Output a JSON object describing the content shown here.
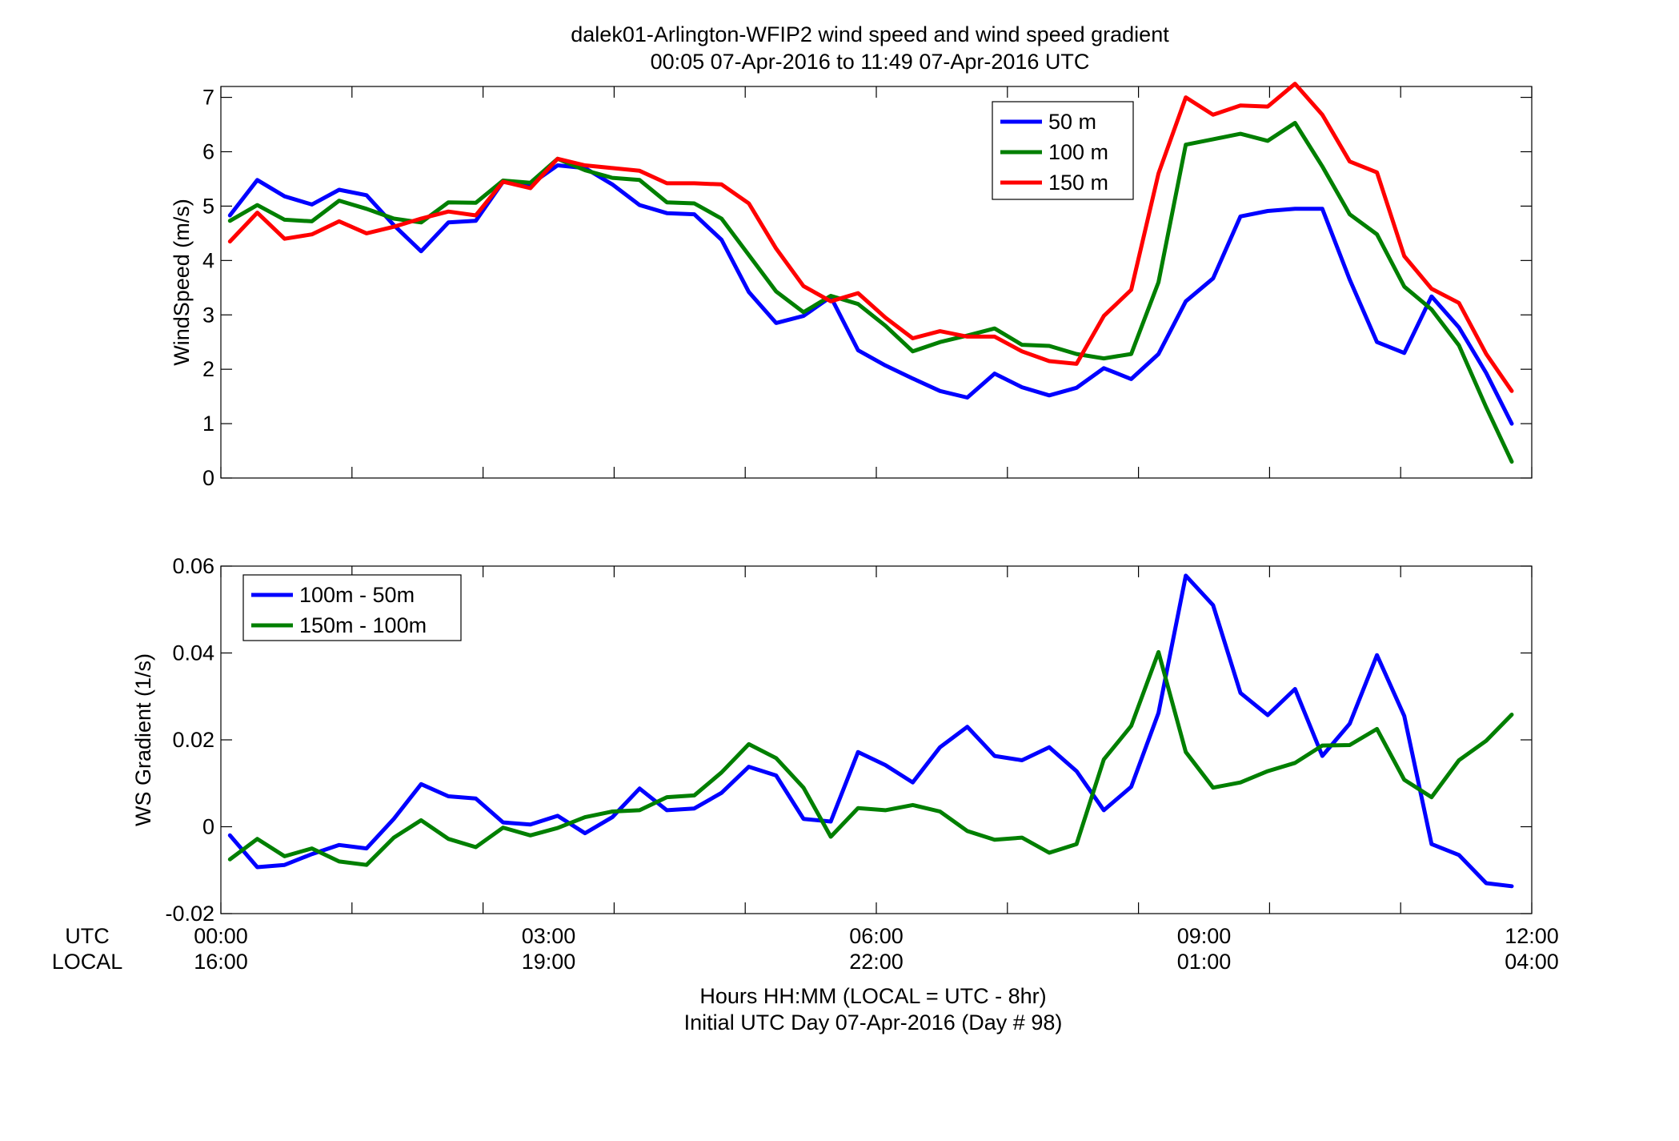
{
  "figure": {
    "title_line1": "dalek01-Arlington-WFIP2  wind speed and wind speed gradient",
    "title_line2": "00:05 07-Apr-2016 to 11:49 07-Apr-2016  UTC",
    "xlabel_line1": "Hours HH:MM  (LOCAL = UTC - 8hr)",
    "xlabel_line2": "Initial UTC Day 07-Apr-2016 (Day # 98)",
    "row_label_utc": "UTC",
    "row_label_local": "LOCAL",
    "utc_ticks": [
      "00:00",
      "03:00",
      "06:00",
      "09:00",
      "12:00"
    ],
    "local_ticks": [
      "16:00",
      "19:00",
      "22:00",
      "01:00",
      "04:00"
    ]
  },
  "chart_data": [
    {
      "type": "line",
      "ylabel": "WindSpeed (m/s)",
      "xlim": [
        0,
        12
      ],
      "ylim": [
        0,
        7.2
      ],
      "yticks": [
        0,
        1,
        2,
        3,
        4,
        5,
        6,
        7
      ],
      "ytick_labels": [
        "0",
        "1",
        "2",
        "3",
        "4",
        "5",
        "6",
        "7"
      ],
      "xticks": [
        0,
        1.2,
        2.4,
        3.6,
        4.8,
        6,
        7.2,
        8.4,
        9.6,
        10.8,
        12
      ],
      "grid": false,
      "legend": "top-right",
      "x": [
        0.083,
        0.333,
        0.583,
        0.833,
        1.083,
        1.333,
        1.583,
        1.833,
        2.083,
        2.333,
        2.583,
        2.833,
        3.083,
        3.333,
        3.583,
        3.833,
        4.083,
        4.333,
        4.583,
        4.833,
        5.083,
        5.333,
        5.583,
        5.833,
        6.083,
        6.333,
        6.583,
        6.833,
        7.083,
        7.333,
        7.583,
        7.833,
        8.083,
        8.333,
        8.583,
        8.833,
        9.083,
        9.333,
        9.583,
        9.833,
        10.083,
        10.333,
        10.583,
        10.833,
        11.083,
        11.333,
        11.583,
        11.817
      ],
      "series": [
        {
          "name": "50 m",
          "color": "#0000ff",
          "values": [
            4.83,
            5.48,
            5.18,
            5.03,
            5.3,
            5.2,
            4.65,
            4.17,
            4.7,
            4.73,
            5.45,
            5.4,
            5.75,
            5.7,
            5.4,
            5.02,
            4.87,
            4.85,
            4.38,
            3.42,
            2.85,
            2.98,
            3.33,
            2.35,
            2.07,
            1.83,
            1.6,
            1.48,
            1.92,
            1.67,
            1.52,
            1.66,
            2.02,
            1.82,
            2.28,
            3.25,
            3.67,
            4.81,
            4.91,
            4.95,
            4.95,
            3.65,
            2.5,
            2.3,
            3.34,
            2.77,
            1.93,
            1.0
          ]
        },
        {
          "name": "100 m",
          "color": "#007f00",
          "values": [
            4.73,
            5.02,
            4.75,
            4.72,
            5.1,
            4.95,
            4.77,
            4.7,
            5.07,
            5.06,
            5.47,
            5.43,
            5.87,
            5.66,
            5.52,
            5.48,
            5.07,
            5.05,
            4.77,
            4.1,
            3.43,
            3.05,
            3.35,
            3.2,
            2.8,
            2.33,
            2.5,
            2.62,
            2.75,
            2.45,
            2.43,
            2.28,
            2.2,
            2.28,
            3.6,
            6.13,
            6.23,
            6.33,
            6.2,
            6.53,
            5.73,
            4.85,
            4.48,
            3.52,
            3.1,
            2.44,
            1.3,
            0.3
          ]
        },
        {
          "name": "150 m",
          "color": "#ff0000",
          "values": [
            4.35,
            4.88,
            4.4,
            4.48,
            4.72,
            4.5,
            4.62,
            4.77,
            4.9,
            4.83,
            5.45,
            5.33,
            5.87,
            5.75,
            5.7,
            5.65,
            5.42,
            5.42,
            5.4,
            5.05,
            4.22,
            3.53,
            3.25,
            3.4,
            2.95,
            2.57,
            2.7,
            2.6,
            2.6,
            2.33,
            2.15,
            2.1,
            2.98,
            3.46,
            5.6,
            7.0,
            6.68,
            6.85,
            6.83,
            7.25,
            6.68,
            5.82,
            5.62,
            4.08,
            3.48,
            3.22,
            2.28,
            1.6
          ]
        }
      ]
    },
    {
      "type": "line",
      "ylabel": "WS Gradient (1/s)",
      "xlim": [
        0,
        12
      ],
      "ylim": [
        -0.02,
        0.06
      ],
      "yticks": [
        -0.02,
        0,
        0.02,
        0.04,
        0.06
      ],
      "ytick_labels": [
        "-0.02",
        "0",
        "0.02",
        "0.04",
        "0.06"
      ],
      "xticks": [
        0,
        1.2,
        2.4,
        3.6,
        4.8,
        6,
        7.2,
        8.4,
        9.6,
        10.8,
        12
      ],
      "grid": false,
      "legend": "top-left",
      "x": [
        0.083,
        0.333,
        0.583,
        0.833,
        1.083,
        1.333,
        1.583,
        1.833,
        2.083,
        2.333,
        2.583,
        2.833,
        3.083,
        3.333,
        3.583,
        3.833,
        4.083,
        4.333,
        4.583,
        4.833,
        5.083,
        5.333,
        5.583,
        5.833,
        6.083,
        6.333,
        6.583,
        6.833,
        7.083,
        7.333,
        7.583,
        7.833,
        8.083,
        8.333,
        8.583,
        8.833,
        9.083,
        9.333,
        9.583,
        9.833,
        10.083,
        10.333,
        10.583,
        10.833,
        11.083,
        11.333,
        11.583,
        11.817
      ],
      "series": [
        {
          "name": "100m - 50m",
          "color": "#0000ff",
          "values": [
            -0.002,
            -0.0093,
            -0.0088,
            -0.0063,
            -0.0042,
            -0.005,
            0.0018,
            0.0098,
            0.007,
            0.0065,
            0.001,
            0.0005,
            0.0025,
            -0.0015,
            0.0022,
            0.0088,
            0.0038,
            0.0042,
            0.0078,
            0.0138,
            0.0118,
            0.0018,
            0.0012,
            0.0172,
            0.0142,
            0.0102,
            0.0183,
            0.023,
            0.0163,
            0.0153,
            0.0183,
            0.0128,
            0.0038,
            0.0092,
            0.0262,
            0.0578,
            0.051,
            0.0308,
            0.0257,
            0.0317,
            0.0163,
            0.0237,
            0.0395,
            0.0255,
            -0.004,
            -0.0065,
            -0.013,
            -0.0137
          ]
        },
        {
          "name": "150m - 100m",
          "color": "#007f00",
          "values": [
            -0.0075,
            -0.0028,
            -0.0068,
            -0.005,
            -0.008,
            -0.0088,
            -0.0025,
            0.0015,
            -0.0028,
            -0.0047,
            -0.0002,
            -0.002,
            -0.0003,
            0.0022,
            0.0035,
            0.0038,
            0.0068,
            0.0072,
            0.0125,
            0.019,
            0.0158,
            0.009,
            -0.0023,
            0.0043,
            0.0038,
            0.005,
            0.0035,
            -0.001,
            -0.003,
            -0.0025,
            -0.006,
            -0.004,
            0.0155,
            0.0232,
            0.0402,
            0.0172,
            0.009,
            0.0102,
            0.0128,
            0.0147,
            0.0187,
            0.0188,
            0.0225,
            0.0108,
            0.0068,
            0.0153,
            0.0198,
            0.0258
          ]
        }
      ]
    }
  ]
}
